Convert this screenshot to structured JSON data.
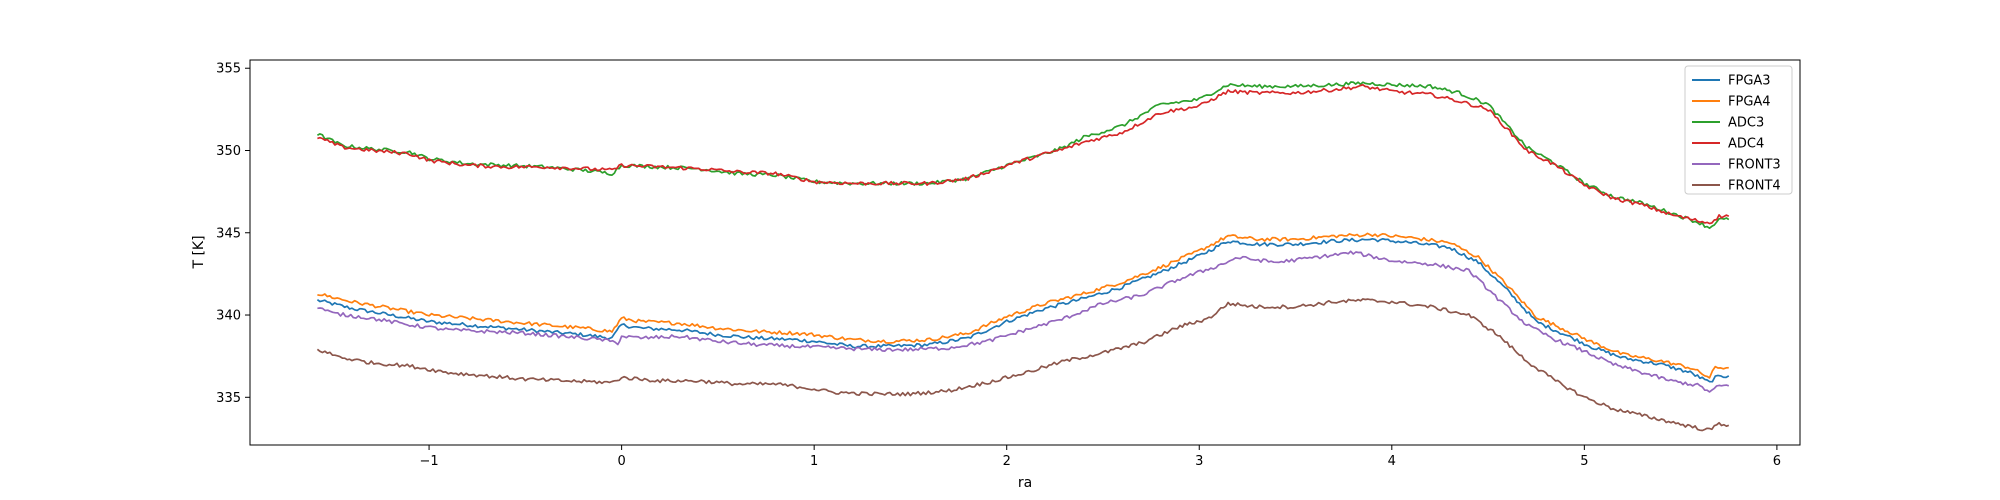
{
  "chart_data": {
    "type": "line",
    "title": "",
    "xlabel": "ra",
    "ylabel": "T [K]",
    "xlim": [
      -1.93,
      6.12
    ],
    "ylim": [
      332.1,
      355.5
    ],
    "x_ticks": [
      -1,
      0,
      1,
      2,
      3,
      4,
      5,
      6
    ],
    "y_ticks": [
      335,
      340,
      345,
      350,
      355
    ],
    "grid": false,
    "legend_position": "top-right",
    "series": [
      {
        "name": "FPGA3",
        "color": "#1f77b4",
        "points": [
          [
            -1.58,
            340.9
          ],
          [
            -1.4,
            340.4
          ],
          [
            -1.2,
            340.0
          ],
          [
            -1.0,
            339.6
          ],
          [
            -0.8,
            339.4
          ],
          [
            -0.6,
            339.2
          ],
          [
            -0.4,
            339.0
          ],
          [
            -0.2,
            338.8
          ],
          [
            -0.05,
            338.6
          ],
          [
            0.0,
            339.4
          ],
          [
            0.1,
            339.2
          ],
          [
            0.3,
            339.1
          ],
          [
            0.5,
            338.8
          ],
          [
            0.7,
            338.6
          ],
          [
            0.9,
            338.5
          ],
          [
            1.0,
            338.4
          ],
          [
            1.2,
            338.1
          ],
          [
            1.4,
            338.1
          ],
          [
            1.6,
            338.2
          ],
          [
            1.8,
            338.6
          ],
          [
            2.0,
            339.6
          ],
          [
            2.2,
            340.4
          ],
          [
            2.4,
            341.0
          ],
          [
            2.6,
            341.7
          ],
          [
            2.8,
            342.6
          ],
          [
            3.0,
            343.6
          ],
          [
            3.15,
            344.5
          ],
          [
            3.3,
            344.3
          ],
          [
            3.5,
            344.3
          ],
          [
            3.7,
            344.5
          ],
          [
            3.9,
            344.6
          ],
          [
            4.1,
            344.4
          ],
          [
            4.3,
            344.1
          ],
          [
            4.45,
            343.2
          ],
          [
            4.6,
            341.5
          ],
          [
            4.75,
            339.6
          ],
          [
            4.9,
            338.8
          ],
          [
            5.05,
            338.0
          ],
          [
            5.2,
            337.4
          ],
          [
            5.4,
            337.0
          ],
          [
            5.55,
            336.5
          ],
          [
            5.65,
            335.9
          ],
          [
            5.68,
            336.2
          ],
          [
            5.75,
            336.3
          ]
        ]
      },
      {
        "name": "FPGA4",
        "color": "#ff7f0e",
        "points": [
          [
            -1.58,
            341.3
          ],
          [
            -1.4,
            340.8
          ],
          [
            -1.2,
            340.4
          ],
          [
            -1.0,
            340.0
          ],
          [
            -0.8,
            339.8
          ],
          [
            -0.6,
            339.6
          ],
          [
            -0.4,
            339.4
          ],
          [
            -0.2,
            339.2
          ],
          [
            -0.05,
            339.0
          ],
          [
            0.0,
            339.8
          ],
          [
            0.1,
            339.6
          ],
          [
            0.3,
            339.5
          ],
          [
            0.5,
            339.2
          ],
          [
            0.7,
            339.0
          ],
          [
            0.9,
            338.9
          ],
          [
            1.0,
            338.8
          ],
          [
            1.2,
            338.5
          ],
          [
            1.4,
            338.4
          ],
          [
            1.6,
            338.5
          ],
          [
            1.8,
            338.9
          ],
          [
            2.0,
            339.9
          ],
          [
            2.2,
            340.7
          ],
          [
            2.4,
            341.3
          ],
          [
            2.6,
            342.0
          ],
          [
            2.8,
            342.9
          ],
          [
            3.0,
            343.9
          ],
          [
            3.15,
            344.8
          ],
          [
            3.3,
            344.6
          ],
          [
            3.5,
            344.6
          ],
          [
            3.7,
            344.8
          ],
          [
            3.9,
            344.9
          ],
          [
            4.1,
            344.7
          ],
          [
            4.3,
            344.4
          ],
          [
            4.45,
            343.5
          ],
          [
            4.6,
            341.8
          ],
          [
            4.75,
            339.9
          ],
          [
            4.9,
            339.1
          ],
          [
            5.05,
            338.3
          ],
          [
            5.2,
            337.6
          ],
          [
            5.4,
            337.2
          ],
          [
            5.55,
            336.8
          ],
          [
            5.65,
            336.2
          ],
          [
            5.68,
            336.8
          ],
          [
            5.75,
            336.8
          ]
        ]
      },
      {
        "name": "ADC3",
        "color": "#2ca02c",
        "points": [
          [
            -1.58,
            351.0
          ],
          [
            -1.45,
            350.3
          ],
          [
            -1.3,
            350.1
          ],
          [
            -1.1,
            349.9
          ],
          [
            -1.0,
            349.5
          ],
          [
            -0.8,
            349.2
          ],
          [
            -0.6,
            349.1
          ],
          [
            -0.4,
            349.0
          ],
          [
            -0.2,
            348.8
          ],
          [
            -0.05,
            348.6
          ],
          [
            0.0,
            349.1
          ],
          [
            0.2,
            349.0
          ],
          [
            0.4,
            348.9
          ],
          [
            0.6,
            348.6
          ],
          [
            0.8,
            348.5
          ],
          [
            1.0,
            348.1
          ],
          [
            1.2,
            348.0
          ],
          [
            1.4,
            348.0
          ],
          [
            1.6,
            348.0
          ],
          [
            1.8,
            348.3
          ],
          [
            2.0,
            349.1
          ],
          [
            2.2,
            349.8
          ],
          [
            2.3,
            350.2
          ],
          [
            2.4,
            350.8
          ],
          [
            2.6,
            351.5
          ],
          [
            2.8,
            352.8
          ],
          [
            3.0,
            353.1
          ],
          [
            3.15,
            354.0
          ],
          [
            3.3,
            353.9
          ],
          [
            3.5,
            353.9
          ],
          [
            3.7,
            354.0
          ],
          [
            3.85,
            354.1
          ],
          [
            4.0,
            354.0
          ],
          [
            4.2,
            353.9
          ],
          [
            4.35,
            353.5
          ],
          [
            4.5,
            352.8
          ],
          [
            4.6,
            351.5
          ],
          [
            4.7,
            350.2
          ],
          [
            4.85,
            349.2
          ],
          [
            5.0,
            348.0
          ],
          [
            5.15,
            347.2
          ],
          [
            5.3,
            346.8
          ],
          [
            5.45,
            346.2
          ],
          [
            5.6,
            345.6
          ],
          [
            5.65,
            345.3
          ],
          [
            5.7,
            345.8
          ],
          [
            5.75,
            345.8
          ]
        ]
      },
      {
        "name": "ADC4",
        "color": "#d62728",
        "points": [
          [
            -1.58,
            350.8
          ],
          [
            -1.45,
            350.2
          ],
          [
            -1.3,
            350.0
          ],
          [
            -1.1,
            349.8
          ],
          [
            -1.0,
            349.4
          ],
          [
            -0.8,
            349.1
          ],
          [
            -0.6,
            349.0
          ],
          [
            -0.4,
            349.0
          ],
          [
            -0.2,
            348.9
          ],
          [
            -0.05,
            348.8
          ],
          [
            0.0,
            349.1
          ],
          [
            0.2,
            349.0
          ],
          [
            0.4,
            348.9
          ],
          [
            0.6,
            348.7
          ],
          [
            0.8,
            348.6
          ],
          [
            1.0,
            348.1
          ],
          [
            1.2,
            348.0
          ],
          [
            1.4,
            348.0
          ],
          [
            1.6,
            348.0
          ],
          [
            1.8,
            348.3
          ],
          [
            2.0,
            349.1
          ],
          [
            2.2,
            349.8
          ],
          [
            2.3,
            350.1
          ],
          [
            2.4,
            350.5
          ],
          [
            2.6,
            351.1
          ],
          [
            2.8,
            352.3
          ],
          [
            3.0,
            352.7
          ],
          [
            3.15,
            353.6
          ],
          [
            3.3,
            353.5
          ],
          [
            3.5,
            353.5
          ],
          [
            3.7,
            353.7
          ],
          [
            3.85,
            353.9
          ],
          [
            4.0,
            353.6
          ],
          [
            4.2,
            353.4
          ],
          [
            4.35,
            353.0
          ],
          [
            4.5,
            352.5
          ],
          [
            4.6,
            351.3
          ],
          [
            4.7,
            350.0
          ],
          [
            4.85,
            349.1
          ],
          [
            5.0,
            347.9
          ],
          [
            5.15,
            347.1
          ],
          [
            5.3,
            346.7
          ],
          [
            5.45,
            346.1
          ],
          [
            5.6,
            345.7
          ],
          [
            5.65,
            345.6
          ],
          [
            5.7,
            346.0
          ],
          [
            5.75,
            346.0
          ]
        ]
      },
      {
        "name": "FRONT3",
        "color": "#9467bd",
        "points": [
          [
            -1.58,
            340.5
          ],
          [
            -1.5,
            340.1
          ],
          [
            -1.3,
            339.8
          ],
          [
            -1.1,
            339.4
          ],
          [
            -0.9,
            339.1
          ],
          [
            -0.7,
            339.0
          ],
          [
            -0.5,
            338.9
          ],
          [
            -0.3,
            338.7
          ],
          [
            -0.1,
            338.5
          ],
          [
            -0.02,
            338.3
          ],
          [
            0.0,
            338.7
          ],
          [
            0.1,
            338.6
          ],
          [
            0.3,
            338.7
          ],
          [
            0.5,
            338.4
          ],
          [
            0.7,
            338.2
          ],
          [
            0.9,
            338.1
          ],
          [
            1.1,
            338.0
          ],
          [
            1.3,
            337.9
          ],
          [
            1.5,
            337.9
          ],
          [
            1.7,
            338.0
          ],
          [
            1.9,
            338.4
          ],
          [
            2.1,
            339.1
          ],
          [
            2.3,
            339.8
          ],
          [
            2.5,
            340.7
          ],
          [
            2.7,
            341.2
          ],
          [
            2.9,
            342.2
          ],
          [
            3.1,
            343.0
          ],
          [
            3.2,
            343.5
          ],
          [
            3.4,
            343.2
          ],
          [
            3.6,
            343.5
          ],
          [
            3.8,
            343.8
          ],
          [
            4.0,
            343.3
          ],
          [
            4.2,
            343.1
          ],
          [
            4.4,
            342.7
          ],
          [
            4.55,
            341.0
          ],
          [
            4.7,
            339.4
          ],
          [
            4.85,
            338.5
          ],
          [
            5.0,
            337.8
          ],
          [
            5.15,
            337.0
          ],
          [
            5.3,
            336.5
          ],
          [
            5.45,
            336.0
          ],
          [
            5.6,
            335.7
          ],
          [
            5.65,
            335.3
          ],
          [
            5.7,
            335.7
          ],
          [
            5.75,
            335.7
          ]
        ]
      },
      {
        "name": "FRONT4",
        "color": "#8c564b",
        "points": [
          [
            -1.58,
            337.9
          ],
          [
            -1.45,
            337.4
          ],
          [
            -1.3,
            337.1
          ],
          [
            -1.1,
            336.9
          ],
          [
            -0.9,
            336.5
          ],
          [
            -0.7,
            336.3
          ],
          [
            -0.5,
            336.1
          ],
          [
            -0.3,
            336.0
          ],
          [
            -0.05,
            335.9
          ],
          [
            0.0,
            336.2
          ],
          [
            0.2,
            336.0
          ],
          [
            0.4,
            336.0
          ],
          [
            0.6,
            335.8
          ],
          [
            0.8,
            335.8
          ],
          [
            0.95,
            335.6
          ],
          [
            1.1,
            335.3
          ],
          [
            1.3,
            335.2
          ],
          [
            1.5,
            335.2
          ],
          [
            1.7,
            335.4
          ],
          [
            1.9,
            335.9
          ],
          [
            2.1,
            336.5
          ],
          [
            2.3,
            337.2
          ],
          [
            2.5,
            337.7
          ],
          [
            2.7,
            338.3
          ],
          [
            2.9,
            339.3
          ],
          [
            3.05,
            339.8
          ],
          [
            3.15,
            340.7
          ],
          [
            3.3,
            340.5
          ],
          [
            3.5,
            340.5
          ],
          [
            3.7,
            340.8
          ],
          [
            3.85,
            340.9
          ],
          [
            4.0,
            340.8
          ],
          [
            4.2,
            340.5
          ],
          [
            4.4,
            340.0
          ],
          [
            4.55,
            338.8
          ],
          [
            4.7,
            337.2
          ],
          [
            4.85,
            336.0
          ],
          [
            5.0,
            335.0
          ],
          [
            5.15,
            334.3
          ],
          [
            5.3,
            333.9
          ],
          [
            5.45,
            333.5
          ],
          [
            5.6,
            333.1
          ],
          [
            5.65,
            333.0
          ],
          [
            5.7,
            333.4
          ],
          [
            5.75,
            333.3
          ]
        ]
      }
    ]
  }
}
